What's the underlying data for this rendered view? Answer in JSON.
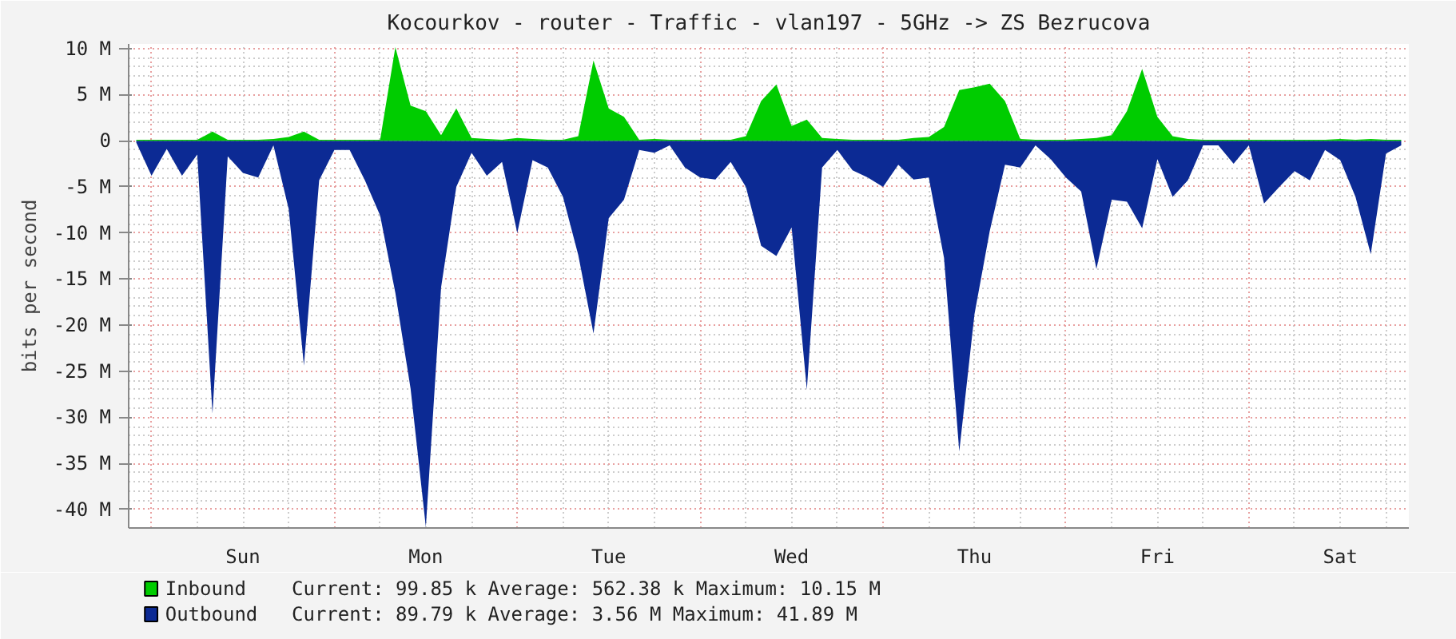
{
  "chart_data": {
    "type": "area",
    "title": "Kocourkov - router - Traffic - vlan197 - 5GHz -> ZS Bezrucova",
    "ylabel": "bits per second",
    "categories": [
      null,
      null,
      null,
      null,
      null,
      null,
      null,
      "Sun",
      null,
      null,
      null,
      null,
      null,
      null,
      null,
      null,
      null,
      null,
      null,
      "Mon",
      null,
      null,
      null,
      null,
      null,
      null,
      null,
      null,
      null,
      null,
      null,
      "Tue",
      null,
      null,
      null,
      null,
      null,
      null,
      null,
      null,
      null,
      null,
      null,
      "Wed",
      null,
      null,
      null,
      null,
      null,
      null,
      null,
      null,
      null,
      null,
      null,
      "Thu",
      null,
      null,
      null,
      null,
      null,
      null,
      null,
      null,
      null,
      null,
      null,
      "Fri",
      null,
      null,
      null,
      null,
      null,
      null,
      null,
      null,
      null,
      null,
      null,
      "Sat",
      null,
      null,
      null,
      null
    ],
    "ylim": [
      -42,
      10.5
    ],
    "yticks": [
      {
        "value": -40,
        "label": "-40 M"
      },
      {
        "value": -35,
        "label": "-35 M"
      },
      {
        "value": -30,
        "label": "-30 M"
      },
      {
        "value": -25,
        "label": "-25 M"
      },
      {
        "value": -20,
        "label": "-20 M"
      },
      {
        "value": -15,
        "label": "-15 M"
      },
      {
        "value": -10,
        "label": "-10 M"
      },
      {
        "value": -5,
        "label": "-5 M"
      },
      0,
      {
        "value": 5,
        "label": "5 M"
      },
      {
        "value": 10,
        "label": "10 M"
      }
    ],
    "grid": true,
    "legend": "bottom",
    "annotations": [
      "Current:   99.85 k   Average:  562.38 k   Maximum:   10.15 M",
      "Current:   89.79 k   Average:    3.56 M   Maximum:   41.89 M"
    ],
    "series": [
      {
        "name": "Outbound",
        "color": "#0c2a94",
        "values": [
          -0.2,
          -3.8,
          -0.9,
          -3.8,
          -1.5,
          -29.6,
          -1.7,
          -3.5,
          -4.0,
          -0.5,
          -7.4,
          -24.4,
          -4.3,
          -1,
          -1,
          -4.3,
          -8.1,
          -16.5,
          -26.9,
          -41.89,
          -15.9,
          -5,
          -1.3,
          -3.8,
          -2.3,
          -10,
          -2.1,
          -2.9,
          -6.1,
          -12.4,
          -20.9,
          -8.4,
          -6.4,
          -1,
          -1.3,
          -0.5,
          -2.9,
          -4.0,
          -4.2,
          -2.3,
          -5,
          -11.4,
          -12.5,
          -9.4,
          -27,
          -2.9,
          -1,
          -3.2,
          -4.0,
          -5,
          -2.6,
          -4.2,
          -4.0,
          -12.7,
          -33.7,
          -18.8,
          -9.8,
          -2.6,
          -2.9,
          -0.5,
          -2,
          -4.0,
          -5.5,
          -13.9,
          -6.4,
          -6.6,
          -9.5,
          -2,
          -6.1,
          -4.3,
          -0.5,
          -0.5,
          -2.5,
          -0.5,
          -6.8,
          -5,
          -3.3,
          -4.3,
          -1,
          -2.1,
          -6.1,
          -12.3,
          -1.4,
          -0.5
        ]
      },
      {
        "name": "Inbound",
        "color": "#00cc00",
        "values": [
          0.1,
          0.1,
          0.1,
          0.1,
          0.1,
          1.0,
          0.1,
          0.1,
          0.1,
          0.2,
          0.4,
          1.0,
          0.1,
          0.1,
          0.1,
          0.1,
          0.1,
          10.15,
          3.8,
          3.2,
          0.6,
          3.5,
          0.3,
          0.2,
          0.1,
          0.3,
          0.2,
          0.1,
          0.1,
          0.5,
          8.7,
          3.5,
          2.6,
          0.1,
          0.2,
          0.1,
          0.1,
          0.1,
          0.1,
          0.1,
          0.5,
          4.3,
          6.1,
          1.6,
          2.3,
          0.3,
          0.2,
          0.1,
          0.1,
          0.1,
          0.1,
          0.3,
          0.4,
          1.5,
          5.5,
          5.8,
          6.2,
          4.3,
          0.2,
          0.1,
          0.1,
          0.1,
          0.2,
          0.3,
          0.6,
          3.2,
          7.8,
          2.6,
          0.5,
          0.2,
          0.1,
          0.1,
          0.1,
          0.1,
          0.1,
          0.1,
          0.1,
          0.1,
          0.1,
          0.2,
          0.1,
          0.2,
          0.1,
          0.1
        ]
      }
    ]
  }
}
